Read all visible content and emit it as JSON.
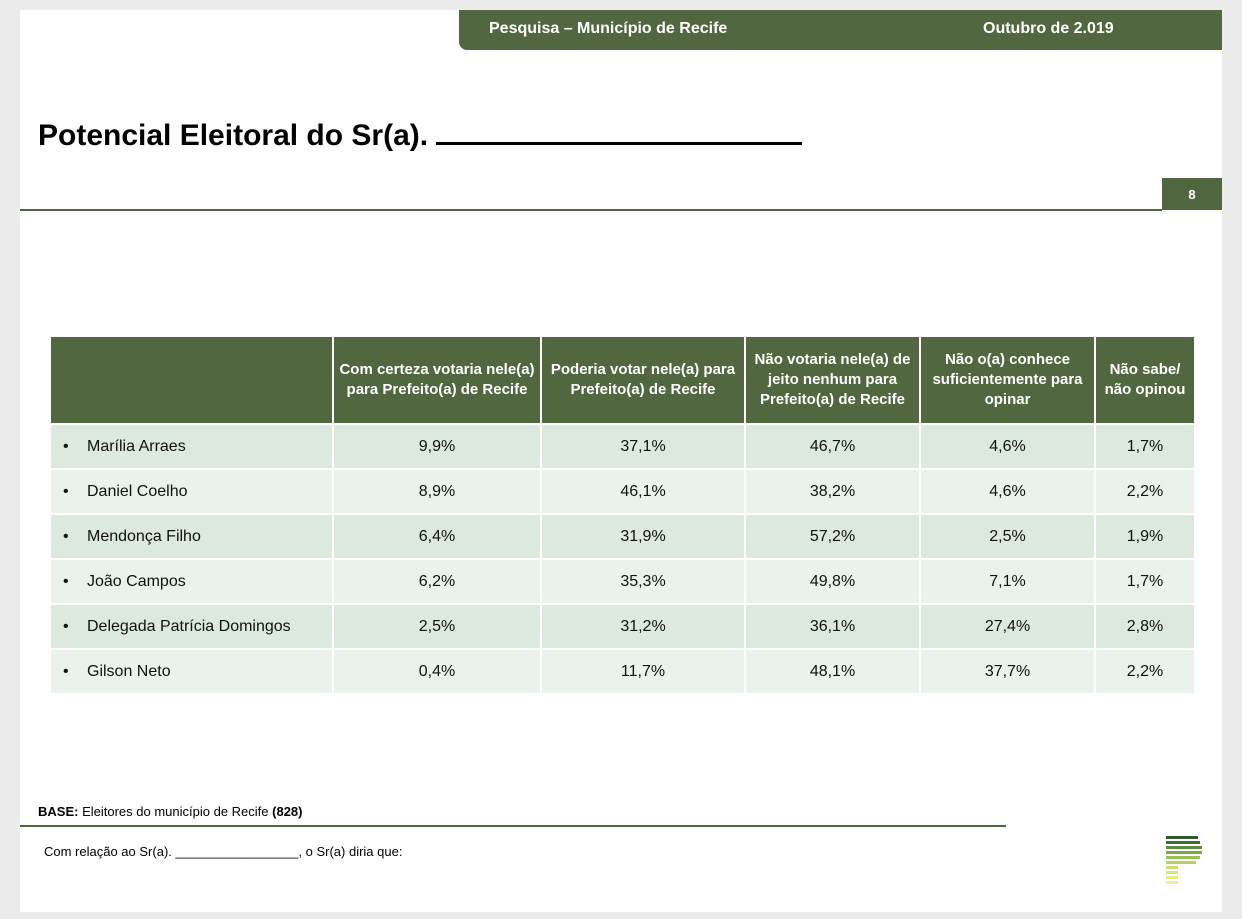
{
  "header": {
    "survey_title": "Pesquisa – Município de Recife",
    "date": "Outubro de 2.019"
  },
  "page_title": "Potencial Eleitoral do Sr(a).",
  "page_number": "8",
  "table": {
    "columns": [
      "",
      "Com certeza votaria nele(a) para Prefeito(a) de Recife",
      "Poderia votar nele(a) para Prefeito(a) de Recife",
      "Não votaria nele(a) de jeito nenhum para Prefeito(a) de Recife",
      "Não o(a) conhece suficientemente para opinar",
      "Não sabe/ não opinou"
    ],
    "bullet": "•",
    "rows": [
      {
        "name": "Marília Arraes",
        "values": [
          "9,9%",
          "37,1%",
          "46,7%",
          "4,6%",
          "1,7%"
        ]
      },
      {
        "name": "Daniel Coelho",
        "values": [
          "8,9%",
          "46,1%",
          "38,2%",
          "4,6%",
          "2,2%"
        ]
      },
      {
        "name": "Mendonça Filho",
        "values": [
          "6,4%",
          "31,9%",
          "57,2%",
          "2,5%",
          "1,9%"
        ]
      },
      {
        "name": "João Campos",
        "values": [
          "6,2%",
          "35,3%",
          "49,8%",
          "7,1%",
          "1,7%"
        ]
      },
      {
        "name": "Delegada Patrícia Domingos",
        "values": [
          "2,5%",
          "31,2%",
          "36,1%",
          "27,4%",
          "2,8%"
        ]
      },
      {
        "name": "Gilson Neto",
        "values": [
          "0,4%",
          "11,7%",
          "48,1%",
          "37,7%",
          "2,2%"
        ]
      }
    ]
  },
  "base": {
    "label": "BASE:",
    "text": "Eleitores do município de Recife",
    "count": "(828)"
  },
  "footnote": "Com relação ao Sr(a). _________________, o Sr(a) diria que:",
  "colors": {
    "accent": "#51673f",
    "row_dark": "#dbe9df",
    "row_light": "#eaf2ec"
  },
  "logo_icon": "company-logo-icon"
}
